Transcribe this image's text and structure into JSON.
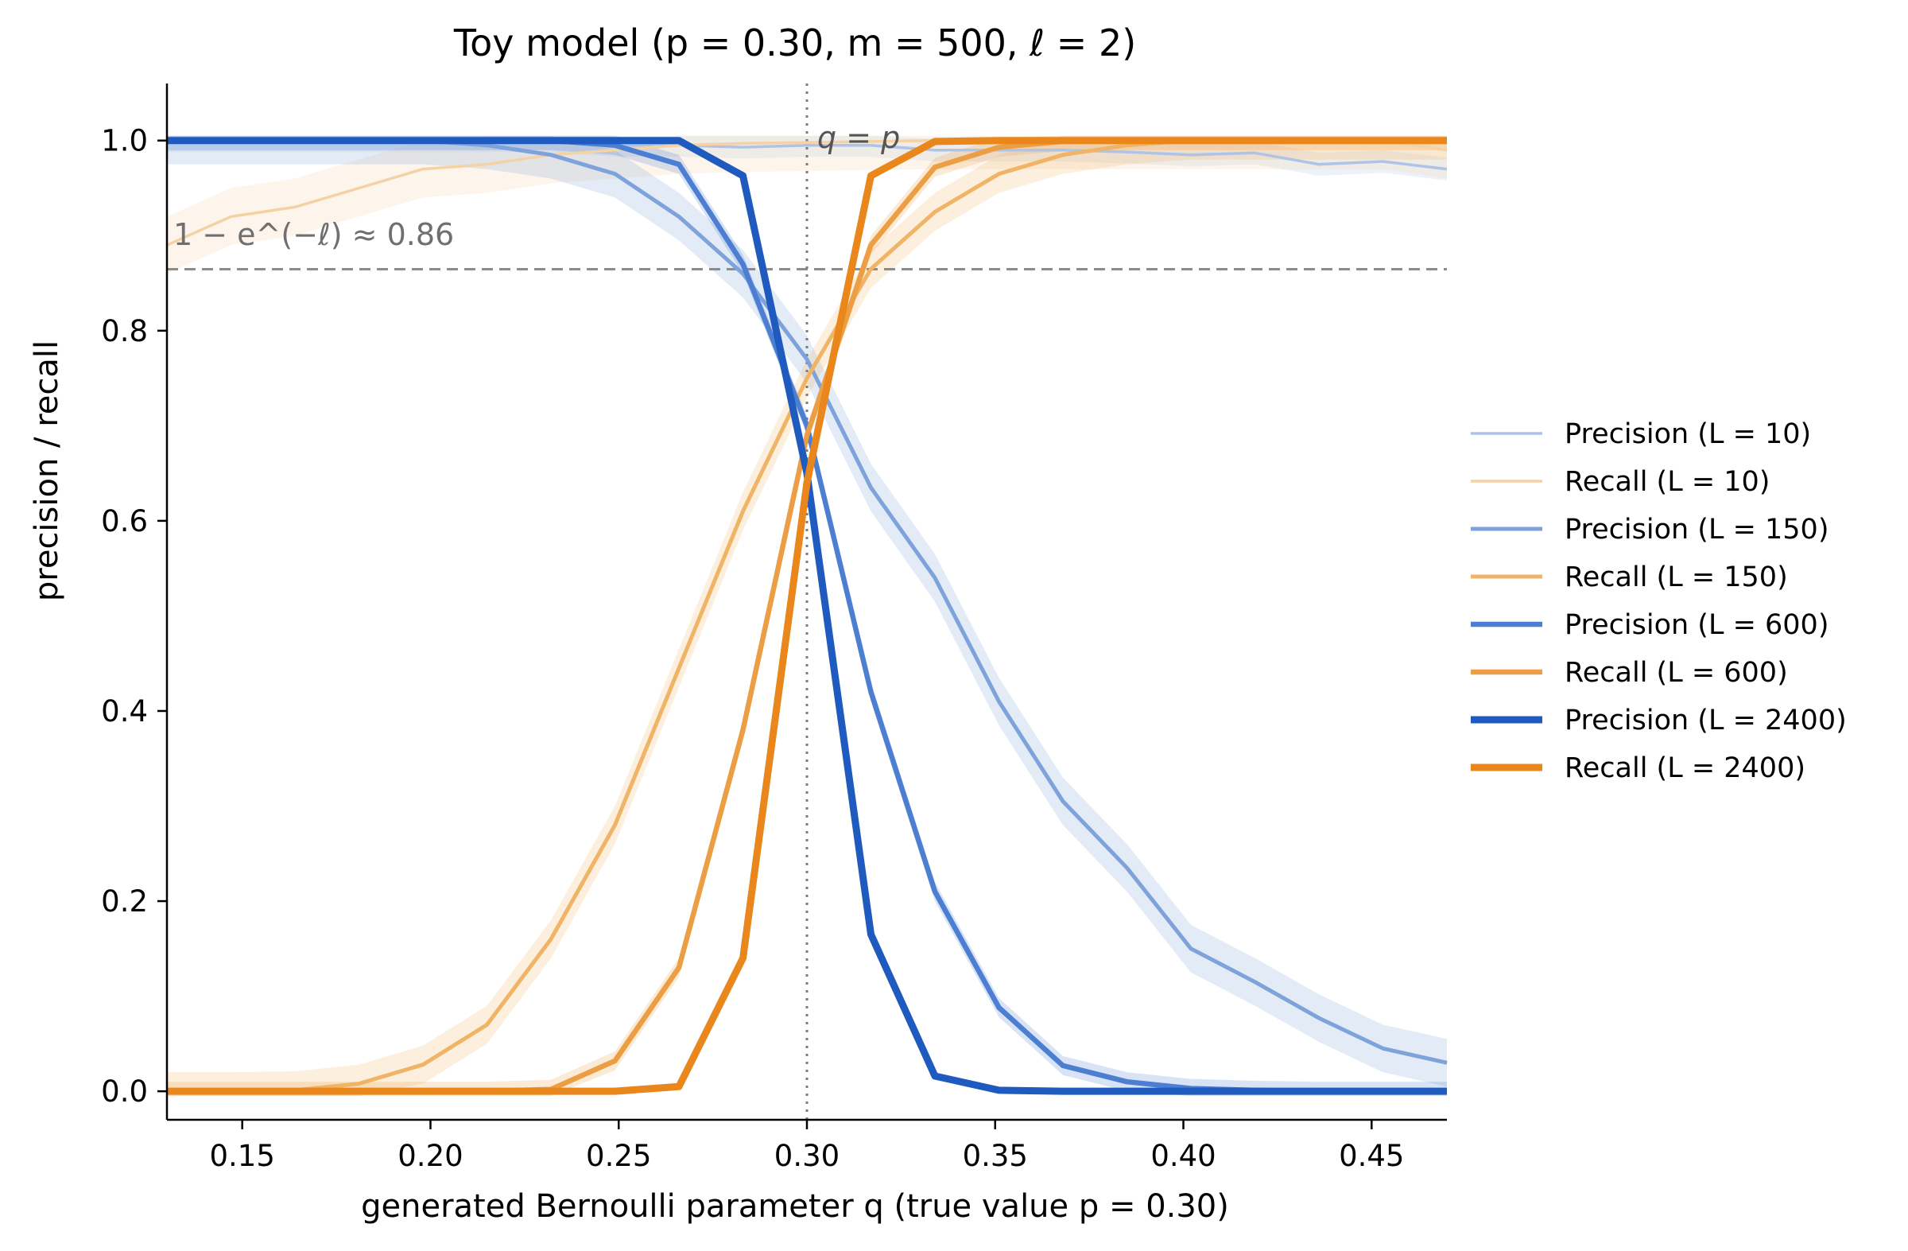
{
  "chart_data": {
    "type": "line",
    "title": "Toy model (p = 0.30,  m = 500,  ℓ = 2)",
    "xlabel": "generated Bernoulli parameter q  (true value p = 0.30)",
    "ylabel": "precision / recall",
    "xlim": [
      0.13,
      0.47
    ],
    "ylim": [
      -0.03,
      1.06
    ],
    "xticks": [
      0.15,
      0.2,
      0.25,
      0.3,
      0.35,
      0.4,
      0.45
    ],
    "xtick_labels": [
      "0.15",
      "0.20",
      "0.25",
      "0.30",
      "0.35",
      "0.40",
      "0.45"
    ],
    "yticks": [
      0.0,
      0.2,
      0.4,
      0.6,
      0.8,
      1.0
    ],
    "ytick_labels": [
      "0.0",
      "0.2",
      "0.4",
      "0.6",
      "0.8",
      "1.0"
    ],
    "grid": false,
    "legend_position": "center-right outside",
    "x": [
      0.13,
      0.147,
      0.164,
      0.181,
      0.198,
      0.215,
      0.232,
      0.249,
      0.266,
      0.283,
      0.3,
      0.317,
      0.334,
      0.351,
      0.368,
      0.385,
      0.402,
      0.419,
      0.436,
      0.453,
      0.47
    ],
    "series": [
      {
        "name": "Precision (L = 10)",
        "color": "#aec3e6",
        "width": 3.5,
        "values": [
          1.0,
          1.0,
          1.0,
          1.0,
          1.0,
          1.0,
          1.0,
          0.995,
          0.995,
          0.993,
          0.995,
          0.995,
          0.99,
          0.99,
          0.99,
          0.988,
          0.985,
          0.987,
          0.975,
          0.978,
          0.97
        ],
        "band": 0.012
      },
      {
        "name": "Recall (L = 10)",
        "color": "#f5d2a6",
        "width": 3.5,
        "values": [
          0.89,
          0.92,
          0.93,
          0.95,
          0.97,
          0.975,
          0.985,
          0.99,
          0.995,
          0.997,
          0.998,
          0.999,
          1.0,
          1.0,
          1.0,
          1.0,
          1.0,
          1.0,
          1.0,
          1.0,
          0.99
        ],
        "band": 0.03
      },
      {
        "name": "Precision (L = 150)",
        "color": "#7ea2da",
        "width": 5,
        "values": [
          1.0,
          1.0,
          1.0,
          1.0,
          1.0,
          0.995,
          0.985,
          0.965,
          0.92,
          0.86,
          0.77,
          0.635,
          0.54,
          0.41,
          0.305,
          0.235,
          0.15,
          0.115,
          0.077,
          0.045,
          0.03
        ],
        "band": 0.025
      },
      {
        "name": "Recall (L = 150)",
        "color": "#f0b466",
        "width": 5,
        "values": [
          0.0,
          0.0,
          0.001,
          0.008,
          0.028,
          0.07,
          0.16,
          0.28,
          0.445,
          0.61,
          0.75,
          0.865,
          0.925,
          0.965,
          0.985,
          0.995,
          1.0,
          1.0,
          1.0,
          1.0,
          1.0
        ],
        "band": 0.02
      },
      {
        "name": "Precision (L = 600)",
        "color": "#4c7ed2",
        "width": 6.5,
        "values": [
          1.0,
          1.0,
          1.0,
          1.0,
          1.0,
          1.0,
          1.0,
          0.995,
          0.975,
          0.87,
          0.7,
          0.42,
          0.21,
          0.088,
          0.027,
          0.01,
          0.003,
          0.001,
          0.0,
          0.0,
          0.0
        ],
        "band": 0.01
      },
      {
        "name": "Recall (L = 600)",
        "color": "#eb9e44",
        "width": 6.5,
        "values": [
          0.0,
          0.0,
          0.0,
          0.0,
          0.0,
          0.0,
          0.002,
          0.032,
          0.13,
          0.38,
          0.69,
          0.89,
          0.972,
          0.993,
          0.999,
          1.0,
          1.0,
          1.0,
          1.0,
          1.0,
          1.0
        ],
        "band": 0.01
      },
      {
        "name": "Precision (L = 2400)",
        "color": "#1f5bbf",
        "width": 9,
        "values": [
          1.0,
          1.0,
          1.0,
          1.0,
          1.0,
          1.0,
          1.0,
          1.0,
          1.0,
          0.963,
          0.65,
          0.165,
          0.016,
          0.001,
          0.0,
          0.0,
          0.0,
          0.0,
          0.0,
          0.0,
          0.0
        ],
        "band": 0.0
      },
      {
        "name": "Recall (L = 2400)",
        "color": "#e9861c",
        "width": 9,
        "values": [
          0.0,
          0.0,
          0.0,
          0.0,
          0.0,
          0.0,
          0.0,
          0.0,
          0.005,
          0.14,
          0.64,
          0.963,
          0.999,
          1.0,
          1.0,
          1.0,
          1.0,
          1.0,
          1.0,
          1.0,
          1.0
        ],
        "band": 0.0
      }
    ],
    "reference_lines": {
      "horizontal_value": 0.8647,
      "horizontal_label": "1 − e^(−ℓ) ≈ 0.86",
      "vertical_value": 0.3,
      "vertical_label": "q = p"
    }
  }
}
